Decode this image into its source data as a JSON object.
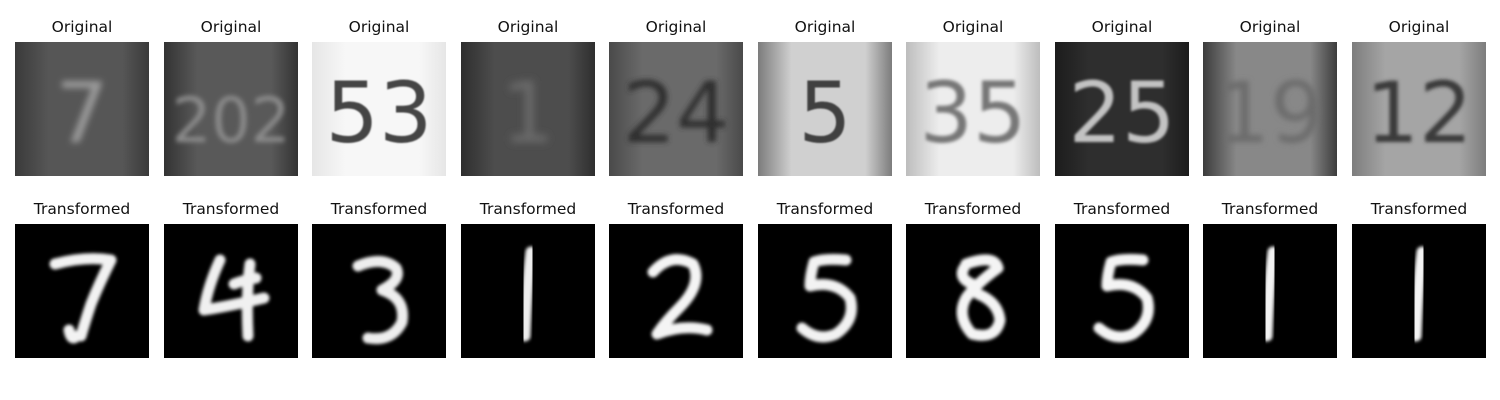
{
  "figure": {
    "top_row_label": "Original",
    "bottom_row_label": "Transformed",
    "pairs": [
      {
        "original": {
          "text": "7",
          "bg": "#565656",
          "fg": "#9a9a9a",
          "edge_dark": "#3a3a3a",
          "blur": 3.2
        },
        "transformed": {
          "digit": "7",
          "stroke": "#f2f2f2"
        }
      },
      {
        "original": {
          "text": "202",
          "bg": "#595959",
          "fg": "#8a8a8a",
          "edge_dark": "#333333",
          "blur": 2.4
        },
        "transformed": {
          "digit": "4",
          "stroke": "#f0f0f0"
        }
      },
      {
        "original": {
          "text": "53",
          "bg": "#f7f7f7",
          "fg": "#444444",
          "edge_dark": "#e6e6e6",
          "blur": 0.8
        },
        "transformed": {
          "digit": "3",
          "stroke": "#eeeeee"
        }
      },
      {
        "original": {
          "text": "1",
          "bg": "#4d4d4d",
          "fg": "#6b6b6b",
          "edge_dark": "#2e2e2e",
          "blur": 4.0
        },
        "transformed": {
          "digit": "1",
          "stroke": "#eeeeee"
        }
      },
      {
        "original": {
          "text": "24",
          "bg": "#6a6a6a",
          "fg": "#2e2e2e",
          "edge_dark": "#4a4a4a",
          "blur": 2.6
        },
        "transformed": {
          "digit": "2",
          "stroke": "#f4f4f4"
        }
      },
      {
        "original": {
          "text": "5",
          "bg": "#d0d0d0",
          "fg": "#3f3f3f",
          "edge_dark": "#7c7c7c",
          "blur": 0.9
        },
        "transformed": {
          "digit": "5",
          "stroke": "#f2f2f2"
        }
      },
      {
        "original": {
          "text": "35",
          "bg": "#ededed",
          "fg": "#777777",
          "edge_dark": "#bdbdbd",
          "blur": 1.6
        },
        "transformed": {
          "digit": "8",
          "stroke": "#f4f4f4"
        }
      },
      {
        "original": {
          "text": "25",
          "bg": "#2e2e2e",
          "fg": "#c2c2c2",
          "edge_dark": "#1c1c1c",
          "blur": 1.2
        },
        "transformed": {
          "digit": "5",
          "stroke": "#f4f4f4"
        }
      },
      {
        "original": {
          "text": "19",
          "bg": "#888888",
          "fg": "#6c6c6c",
          "edge_dark": "#3c3c3c",
          "blur": 3.0
        },
        "transformed": {
          "digit": "1",
          "stroke": "#f2f2f2"
        }
      },
      {
        "original": {
          "text": "12",
          "bg": "#a5a5a5",
          "fg": "#3a3a3a",
          "edge_dark": "#7d7d7d",
          "blur": 1.8
        },
        "transformed": {
          "digit": "1",
          "stroke": "#f4f4f4"
        }
      }
    ]
  }
}
